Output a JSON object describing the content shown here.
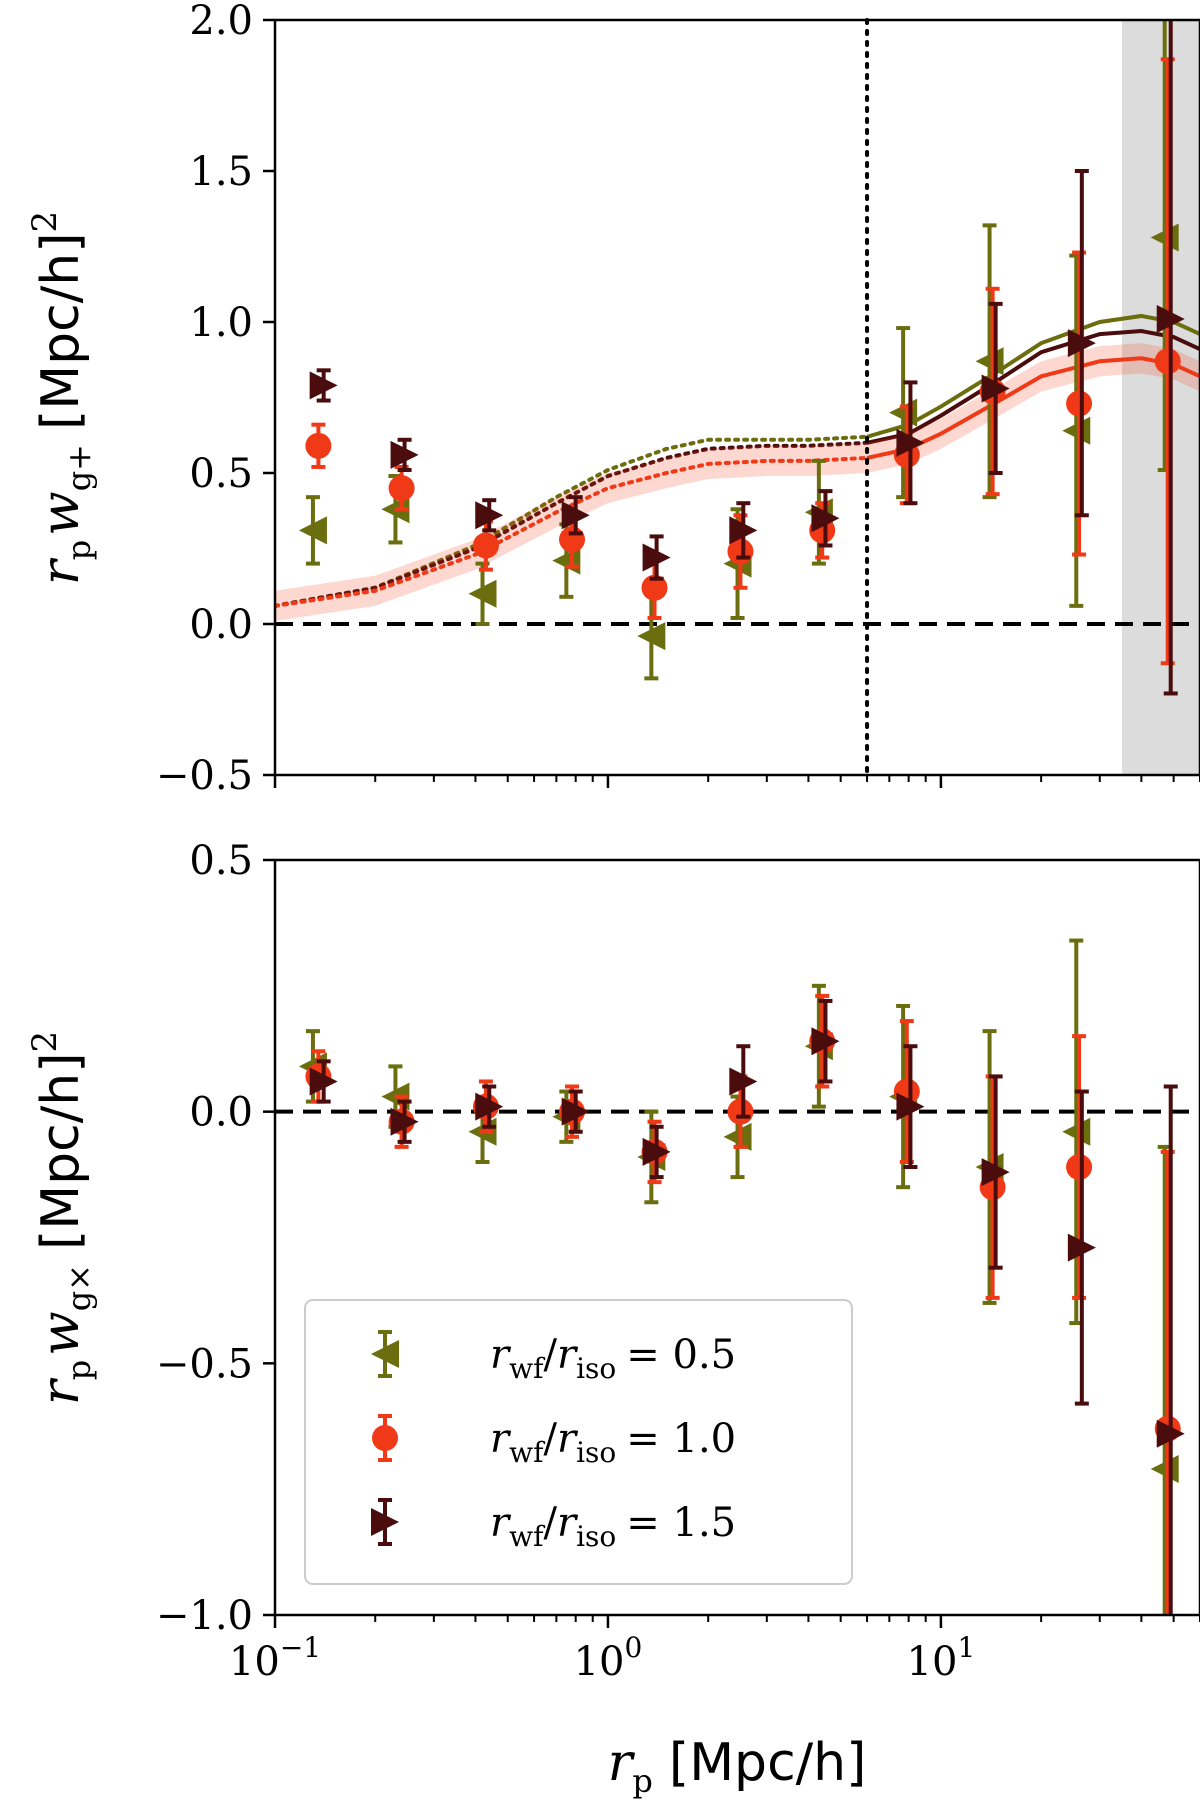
{
  "chart_data": [
    {
      "type": "scatter",
      "panel": "top",
      "ylabel": {
        "r": "r",
        "p": "p",
        "w": "w",
        "sub": "g+",
        "unit": "[Mpc/h]",
        "power": "2"
      },
      "ylim": [
        -0.5,
        2.0
      ],
      "yticks": [
        -0.5,
        0.0,
        0.5,
        1.0,
        1.5,
        2.0
      ],
      "ytick_labels": [
        "−0.5",
        "0.0",
        "0.5",
        "1.0",
        "1.5",
        "2.0"
      ],
      "xscale": "log",
      "xlim": [
        0.1,
        60
      ],
      "zero_line": 0.0,
      "vline_x": 6.0,
      "shaded_xrange": [
        35,
        60
      ],
      "series": [
        {
          "name": "r_wf/r_iso = 0.5",
          "color": "#6b6e0e",
          "marker": "triangle-left",
          "x": [
            0.13,
            0.23,
            0.42,
            0.75,
            1.35,
            2.45,
            4.3,
            7.7,
            14.0,
            25.5,
            47.0
          ],
          "y": [
            0.31,
            0.38,
            0.1,
            0.21,
            -0.04,
            0.2,
            0.37,
            0.7,
            0.87,
            0.64,
            1.28
          ],
          "err": [
            0.11,
            0.11,
            0.1,
            0.12,
            0.14,
            0.18,
            0.17,
            0.28,
            0.45,
            0.58,
            0.77
          ]
        },
        {
          "name": "r_wf/r_iso = 1.0",
          "color": "#f03a17",
          "marker": "circle",
          "x": [
            0.135,
            0.24,
            0.43,
            0.78,
            1.38,
            2.5,
            4.4,
            7.9,
            14.3,
            26.0,
            48.0
          ],
          "y": [
            0.59,
            0.45,
            0.26,
            0.28,
            0.12,
            0.24,
            0.31,
            0.56,
            0.77,
            0.73,
            0.87
          ],
          "err": [
            0.07,
            0.07,
            0.08,
            0.09,
            0.1,
            0.12,
            0.09,
            0.16,
            0.34,
            0.5,
            1.0
          ]
        },
        {
          "name": "r_wf/r_iso = 1.5",
          "color": "#4a0c0c",
          "marker": "triangle-right",
          "x": [
            0.14,
            0.245,
            0.44,
            0.8,
            1.4,
            2.55,
            4.5,
            8.1,
            14.6,
            26.5,
            49.0
          ],
          "y": [
            0.79,
            0.56,
            0.36,
            0.36,
            0.22,
            0.31,
            0.35,
            0.6,
            0.78,
            0.93,
            1.01
          ],
          "err": [
            0.05,
            0.05,
            0.05,
            0.06,
            0.07,
            0.09,
            0.09,
            0.2,
            0.28,
            0.57,
            1.24
          ]
        }
      ],
      "model_curves": [
        {
          "name": "model 0.5",
          "color": "#6b6e0e",
          "x": [
            0.1,
            0.2,
            0.4,
            0.7,
            1.0,
            1.5,
            2.0,
            3.0,
            4.0,
            6.0,
            8.0,
            10.0,
            15.0,
            20.0,
            30.0,
            40.0,
            50.0,
            60.0
          ],
          "y": [
            0.06,
            0.12,
            0.26,
            0.42,
            0.51,
            0.58,
            0.61,
            0.61,
            0.61,
            0.62,
            0.66,
            0.72,
            0.84,
            0.93,
            1.0,
            1.02,
            1.0,
            0.96
          ]
        },
        {
          "name": "model 1.5",
          "color": "#4a0c0c",
          "x": [
            0.1,
            0.2,
            0.4,
            0.7,
            1.0,
            1.5,
            2.0,
            3.0,
            4.0,
            6.0,
            8.0,
            10.0,
            15.0,
            20.0,
            30.0,
            40.0,
            50.0,
            60.0
          ],
          "y": [
            0.06,
            0.12,
            0.25,
            0.4,
            0.49,
            0.55,
            0.58,
            0.59,
            0.59,
            0.6,
            0.63,
            0.69,
            0.81,
            0.9,
            0.96,
            0.97,
            0.95,
            0.91
          ]
        },
        {
          "name": "model 1.0",
          "color": "#f03a17",
          "band": 0.05,
          "x": [
            0.1,
            0.2,
            0.4,
            0.7,
            1.0,
            1.5,
            2.0,
            3.0,
            4.0,
            6.0,
            8.0,
            10.0,
            15.0,
            20.0,
            30.0,
            40.0,
            50.0,
            60.0
          ],
          "y": [
            0.06,
            0.11,
            0.23,
            0.37,
            0.45,
            0.5,
            0.53,
            0.54,
            0.54,
            0.55,
            0.58,
            0.63,
            0.74,
            0.82,
            0.87,
            0.88,
            0.86,
            0.82
          ]
        }
      ]
    },
    {
      "type": "scatter",
      "panel": "bottom",
      "ylabel": {
        "r": "r",
        "p": "p",
        "w": "w",
        "sub": "g×",
        "unit": "[Mpc/h]",
        "power": "2"
      },
      "xlabel": {
        "r": "r",
        "p": "p",
        "unit": "[Mpc/h]"
      },
      "ylim": [
        -1.0,
        0.5
      ],
      "yticks": [
        -1.0,
        -0.5,
        0.0,
        0.5
      ],
      "ytick_labels": [
        "−1.0",
        "−0.5",
        "0.0",
        "0.5"
      ],
      "xscale": "log",
      "xlim": [
        0.1,
        60
      ],
      "xticks": [
        0.1,
        1,
        10
      ],
      "xtick_labels": [
        {
          "base": "10",
          "exp": "−1"
        },
        {
          "base": "10",
          "exp": "0"
        },
        {
          "base": "10",
          "exp": "1"
        }
      ],
      "zero_line": 0.0,
      "legend_position": "lower-left",
      "series": [
        {
          "name": "r_wf/r_iso = 0.5",
          "color": "#6b6e0e",
          "marker": "triangle-left",
          "x": [
            0.13,
            0.23,
            0.42,
            0.75,
            1.35,
            2.45,
            4.3,
            7.7,
            14.0,
            25.5,
            47.0
          ],
          "y": [
            0.09,
            0.03,
            -0.04,
            -0.01,
            -0.09,
            -0.05,
            0.13,
            0.03,
            -0.11,
            -0.04,
            -0.71
          ],
          "err": [
            0.07,
            0.06,
            0.06,
            0.05,
            0.09,
            0.08,
            0.12,
            0.18,
            0.27,
            0.38,
            0.64
          ]
        },
        {
          "name": "r_wf/r_iso = 1.0",
          "color": "#f03a17",
          "marker": "circle",
          "x": [
            0.135,
            0.24,
            0.43,
            0.78,
            1.38,
            2.5,
            4.4,
            7.9,
            14.3,
            26.0,
            48.0
          ],
          "y": [
            0.07,
            -0.02,
            0.01,
            0.0,
            -0.08,
            0.0,
            0.14,
            0.04,
            -0.15,
            -0.11,
            -0.63
          ],
          "err": [
            0.05,
            0.05,
            0.05,
            0.05,
            0.06,
            0.07,
            0.09,
            0.14,
            0.22,
            0.26,
            0.55
          ]
        },
        {
          "name": "r_wf/r_iso = 1.5",
          "color": "#4a0c0c",
          "marker": "triangle-right",
          "x": [
            0.14,
            0.245,
            0.44,
            0.8,
            1.4,
            2.55,
            4.5,
            8.1,
            14.6,
            26.5,
            49.0
          ],
          "y": [
            0.06,
            -0.02,
            0.01,
            0.0,
            -0.08,
            0.06,
            0.14,
            0.01,
            -0.12,
            -0.27,
            -0.64
          ],
          "err": [
            0.04,
            0.04,
            0.04,
            0.04,
            0.05,
            0.07,
            0.08,
            0.12,
            0.19,
            0.31,
            0.69
          ]
        }
      ],
      "legend": [
        {
          "series": 0,
          "lhs": "r",
          "wf": "wf",
          "iso": "iso",
          "value": "= 0.5"
        },
        {
          "series": 1,
          "lhs": "r",
          "wf": "wf",
          "iso": "iso",
          "value": "= 1.0"
        },
        {
          "series": 2,
          "lhs": "r",
          "wf": "wf",
          "iso": "iso",
          "value": "= 1.5"
        }
      ]
    }
  ]
}
